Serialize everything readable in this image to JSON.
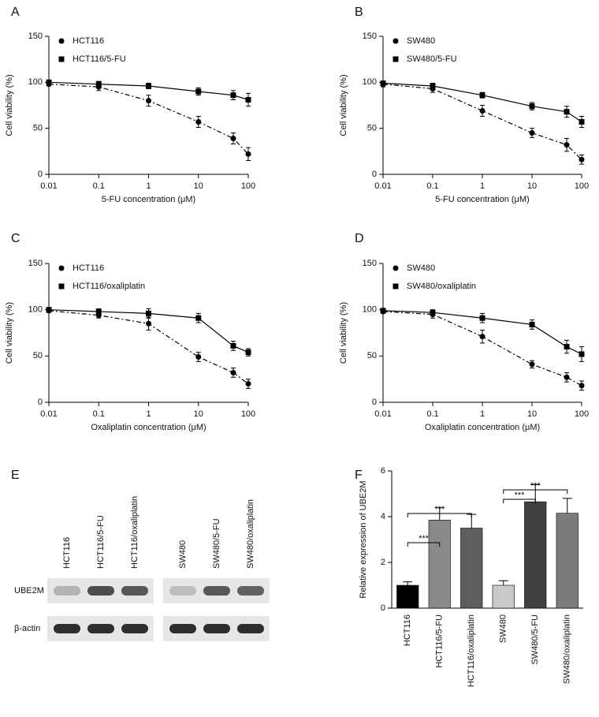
{
  "chart_data": [
    {
      "type": "line",
      "label": "A",
      "xlabel": "5-FU concentration (μM)",
      "ylabel": "Cell viability (%)",
      "log_x": true,
      "x": [
        0.01,
        0.1,
        1,
        10,
        50,
        100
      ],
      "xlim": [
        0.01,
        100
      ],
      "xticks": [
        0.01,
        0.1,
        1,
        10,
        100
      ],
      "ylim": [
        0,
        150
      ],
      "yticks": [
        0,
        50,
        100,
        150
      ],
      "legend": "upper left",
      "series": [
        {
          "name": "HCT116",
          "color": "#000000",
          "marker": "circle",
          "linestyle": "dashdot",
          "values": [
            98,
            95,
            80,
            57,
            39,
            22
          ],
          "errors": [
            2,
            4,
            6,
            6,
            6,
            7
          ]
        },
        {
          "name": "HCT116/5-FU",
          "color": "#000000",
          "marker": "square",
          "linestyle": "solid",
          "values": [
            100,
            98,
            96,
            90,
            86,
            81
          ],
          "errors": [
            2,
            3,
            3,
            4,
            5,
            7
          ]
        }
      ]
    },
    {
      "type": "line",
      "label": "B",
      "xlabel": "5-FU concentration (μM)",
      "ylabel": "Cell viability (%)",
      "log_x": true,
      "x": [
        0.01,
        0.1,
        1,
        10,
        50,
        100
      ],
      "xlim": [
        0.01,
        100
      ],
      "xticks": [
        0.01,
        0.1,
        1,
        10,
        100
      ],
      "ylim": [
        0,
        150
      ],
      "yticks": [
        0,
        50,
        100,
        150
      ],
      "legend": "upper left",
      "series": [
        {
          "name": "SW480",
          "color": "#000000",
          "marker": "circle",
          "linestyle": "dashdot",
          "values": [
            98,
            93,
            69,
            45,
            32,
            16
          ],
          "errors": [
            3,
            4,
            6,
            5,
            7,
            5
          ]
        },
        {
          "name": "SW480/5-FU",
          "color": "#000000",
          "marker": "square",
          "linestyle": "solid",
          "values": [
            99,
            96,
            86,
            74,
            68,
            57
          ],
          "errors": [
            2,
            3,
            3,
            4,
            6,
            6
          ]
        }
      ]
    },
    {
      "type": "line",
      "label": "C",
      "xlabel": "Oxaliplatin concentration (μM)",
      "ylabel": "Cell viability (%)",
      "log_x": true,
      "x": [
        0.01,
        0.1,
        1,
        10,
        50,
        100
      ],
      "xlim": [
        0.01,
        100
      ],
      "xticks": [
        0.01,
        0.1,
        1,
        10,
        100
      ],
      "ylim": [
        0,
        150
      ],
      "yticks": [
        0,
        50,
        100,
        150
      ],
      "legend": "upper left",
      "series": [
        {
          "name": "HCT116",
          "color": "#000000",
          "marker": "circle",
          "linestyle": "dashdot",
          "values": [
            99,
            94,
            85,
            49,
            32,
            20
          ],
          "errors": [
            2,
            3,
            7,
            5,
            5,
            5
          ]
        },
        {
          "name": "HCT116/oxaliplatin",
          "color": "#000000",
          "marker": "square",
          "linestyle": "solid",
          "values": [
            100,
            98,
            96,
            91,
            61,
            54
          ],
          "errors": [
            2,
            3,
            5,
            5,
            5,
            4
          ]
        }
      ]
    },
    {
      "type": "line",
      "label": "D",
      "xlabel": "Oxaliplatin concentration (μM)",
      "ylabel": "Cell viability (%)",
      "log_x": true,
      "x": [
        0.01,
        0.1,
        1,
        10,
        50,
        100
      ],
      "xlim": [
        0.01,
        100
      ],
      "xticks": [
        0.01,
        0.1,
        1,
        10,
        100
      ],
      "ylim": [
        0,
        150
      ],
      "yticks": [
        0,
        50,
        100,
        150
      ],
      "legend": "upper left",
      "series": [
        {
          "name": "SW480",
          "color": "#000000",
          "marker": "circle",
          "linestyle": "dashdot",
          "values": [
            98,
            95,
            71,
            41,
            27,
            18
          ],
          "errors": [
            2,
            4,
            7,
            4,
            5,
            5
          ]
        },
        {
          "name": "SW480/oxaliplatin",
          "color": "#000000",
          "marker": "square",
          "linestyle": "solid",
          "values": [
            99,
            97,
            91,
            84,
            60,
            52
          ],
          "errors": [
            2,
            3,
            5,
            5,
            7,
            8
          ]
        }
      ]
    },
    {
      "type": "blot",
      "label": "E",
      "groups": [
        [
          "HCT116",
          "HCT116/5-FU",
          "HCT116/oxaliplatin"
        ],
        [
          "SW480",
          "SW480/5-FU",
          "SW480/oxaliplatin"
        ]
      ],
      "rows": [
        "UBE2M",
        "β-actin"
      ]
    },
    {
      "type": "bar",
      "label": "F",
      "ylabel": "Relative expression of UBE2M",
      "categories": [
        "HCT116",
        "HCT116/5-FU",
        "HCT116/oxaliplatin",
        "SW480",
        "SW480/5-FU",
        "SW480/oxaliplatin"
      ],
      "values": [
        1.0,
        3.85,
        3.5,
        1.0,
        4.65,
        4.15
      ],
      "errors": [
        0.15,
        0.55,
        0.6,
        0.2,
        0.75,
        0.65
      ],
      "colors": [
        "#000000",
        "#8a8a8a",
        "#5e5e5e",
        "#c9c9c9",
        "#404040",
        "#7c7c7c"
      ],
      "ylim": [
        0,
        6
      ],
      "yticks": [
        0,
        2,
        4,
        6
      ],
      "comparisons": [
        {
          "label": "***",
          "groups": [
            "HCT116",
            "HCT116/5-FU"
          ]
        },
        {
          "label": "***",
          "groups": [
            "HCT116",
            "HCT116/oxaliplatin"
          ]
        },
        {
          "label": "***",
          "groups": [
            "SW480",
            "SW480/5-FU"
          ]
        },
        {
          "label": "***",
          "groups": [
            "SW480",
            "SW480/oxaliplatin"
          ]
        }
      ]
    }
  ]
}
